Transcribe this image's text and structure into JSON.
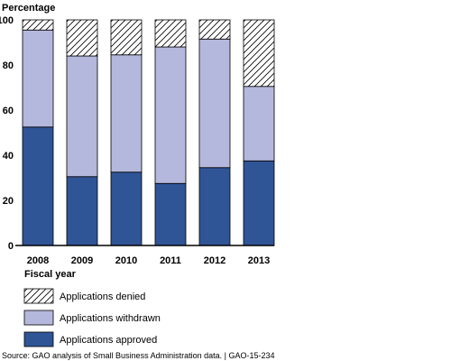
{
  "chart_data": {
    "type": "bar",
    "stacked": true,
    "percent": true,
    "ylabel": "Percentage",
    "xlabel": "Fiscal year",
    "ylim": [
      0,
      100
    ],
    "yticks": [
      0,
      20,
      40,
      60,
      80,
      100
    ],
    "categories": [
      "2008",
      "2009",
      "2010",
      "2011",
      "2012",
      "2013"
    ],
    "series": [
      {
        "name": "Applications approved",
        "color": "#2f5597",
        "pattern": "solid",
        "values": [
          52.5,
          30.5,
          32.5,
          27.5,
          34.5,
          37.5
        ]
      },
      {
        "name": "Applications withdrawn",
        "color": "#b4b8dc",
        "pattern": "solid",
        "values": [
          43,
          53.5,
          52,
          60.5,
          57,
          33
        ]
      },
      {
        "name": "Applications denied",
        "color": "#ffffff",
        "pattern": "hatch",
        "values": [
          4.5,
          16,
          15.5,
          12,
          8.5,
          29.5
        ]
      }
    ],
    "legend": {
      "placement": "bottom-left",
      "order": [
        "Applications denied",
        "Applications withdrawn",
        "Applications approved"
      ]
    },
    "grid": false
  },
  "source": "Source: GAO analysis of Small Business Administration data.  |  GAO-15-234"
}
